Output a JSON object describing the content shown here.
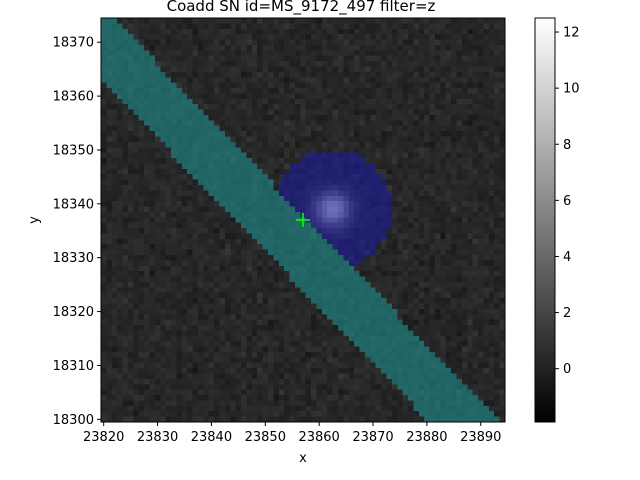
{
  "chart_data": {
    "type": "heatmap",
    "title": "Coadd SN id=MS_9172_497 filter=z",
    "xlabel": "x",
    "ylabel": "y",
    "xlim": [
      23819.5,
      23894.5
    ],
    "ylim": [
      18299.5,
      18374.5
    ],
    "x_ticks": [
      23820,
      23830,
      23840,
      23850,
      23860,
      23870,
      23880,
      23890
    ],
    "y_ticks": [
      18300,
      18310,
      18320,
      18330,
      18340,
      18350,
      18360,
      18370
    ],
    "colormap": "gray",
    "color_range": [
      -1.9,
      12.5
    ],
    "colorbar_ticks": [
      0,
      2,
      4,
      6,
      8,
      10,
      12
    ],
    "background_level": 0.3,
    "source": {
      "x": 23862.5,
      "y": 18339,
      "peak": 11.5
    },
    "masks": [
      {
        "name": "source footprint",
        "color": "#1b1b9e",
        "alpha": 0.6,
        "center": [
          23862.5,
          18339
        ],
        "radius": 11
      },
      {
        "name": "satellite streak",
        "color": "#1e8f8f",
        "alpha": 0.6,
        "from": [
          23819.5,
          18370
        ],
        "to": [
          23887,
          18299.5
        ],
        "half_width": 4.8
      }
    ],
    "marker": {
      "symbol": "+",
      "x": 23857,
      "y": 18337,
      "color": "#00ff00"
    },
    "grid": false
  }
}
